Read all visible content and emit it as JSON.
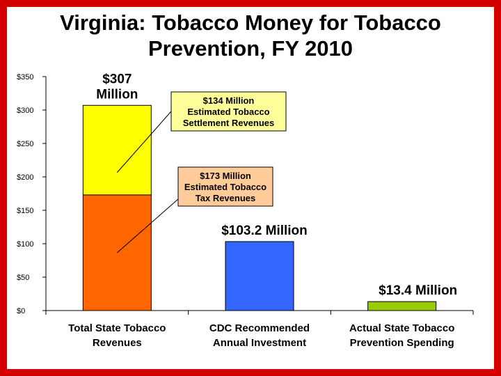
{
  "chart_data": {
    "type": "bar",
    "title_lines": [
      "Virginia: Tobacco Money for Tobacco",
      "Prevention, FY 2010"
    ],
    "categories": [
      [
        "Total State Tobacco",
        "Revenues"
      ],
      [
        "CDC Recommended",
        "Annual Investment"
      ],
      [
        "Actual State Tobacco",
        "Prevention Spending"
      ]
    ],
    "series": [
      {
        "name": "$173 Million Estimated Tobacco Tax Revenues",
        "values": [
          173,
          103.2,
          13.4
        ]
      },
      {
        "name": "$134 Million Estimated Tobacco Settlement Revenues",
        "values": [
          134,
          0,
          0
        ]
      }
    ],
    "bar_colors": [
      [
        "#ff6600",
        "#ffff00"
      ],
      [
        "#3366ff"
      ],
      [
        "#99cc00"
      ]
    ],
    "ylim": [
      0,
      350
    ],
    "yticks": [
      0,
      50,
      100,
      150,
      200,
      250,
      300,
      350
    ],
    "ytick_labels": [
      "$0",
      "$50",
      "$100",
      "$150",
      "$200",
      "$250",
      "$300",
      "$350"
    ],
    "data_labels": [
      [
        "$307",
        "Million"
      ],
      [
        "$103.2 Million"
      ],
      [
        "$13.4 Million"
      ]
    ],
    "callouts": [
      {
        "lines": [
          "$134 Million",
          "Estimated Tobacco",
          "Settlement Revenues"
        ],
        "color": "#ffff99",
        "target_bar": 0,
        "target_segment": 1
      },
      {
        "lines": [
          "$173 Million",
          "Estimated Tobacco",
          "Tax Revenues"
        ],
        "color": "#ffcc99",
        "target_bar": 0,
        "target_segment": 0
      }
    ],
    "grid": false,
    "legend": "none"
  }
}
